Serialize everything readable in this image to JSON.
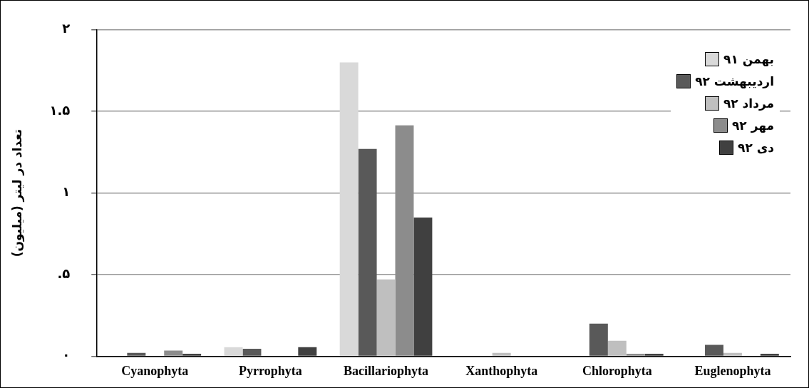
{
  "chart_data": {
    "type": "bar",
    "ylabel": "تعداد در لیتر (میلیون)",
    "categories": [
      "Cyanophyta",
      "Pyrrophyta",
      "Bacillariophyta",
      "Xanthophyta",
      "Chlorophyta",
      "Euglenophyta"
    ],
    "series": [
      {
        "name": "بهمن ۹۱",
        "color": "#d9d9d9",
        "values": [
          0,
          0.055,
          1.8,
          0,
          0,
          0
        ]
      },
      {
        "name": "اردیبهشت ۹۲",
        "color": "#595959",
        "values": [
          0.02,
          0.045,
          1.27,
          0,
          0.2,
          0.07
        ]
      },
      {
        "name": "مرداد ۹۲",
        "color": "#bfbfbf",
        "values": [
          0,
          0,
          0.47,
          0.02,
          0.095,
          0.02
        ]
      },
      {
        "name": "مهر ۹۲",
        "color": "#8c8c8c",
        "values": [
          0.035,
          0,
          1.415,
          0,
          0.015,
          0
        ]
      },
      {
        "name": "دی ۹۲",
        "color": "#404040",
        "values": [
          0.015,
          0.055,
          0.85,
          0,
          0.015,
          0.015
        ]
      }
    ],
    "ylim": [
      0,
      2
    ],
    "yticks": [
      {
        "value": 0,
        "label": "۰"
      },
      {
        "value": 0.5,
        "label": ".۵"
      },
      {
        "value": 1,
        "label": "۱"
      },
      {
        "value": 1.5,
        "label": "۱.۵"
      },
      {
        "value": 2,
        "label": "۲"
      }
    ],
    "grid": "y",
    "legend": "top right"
  }
}
